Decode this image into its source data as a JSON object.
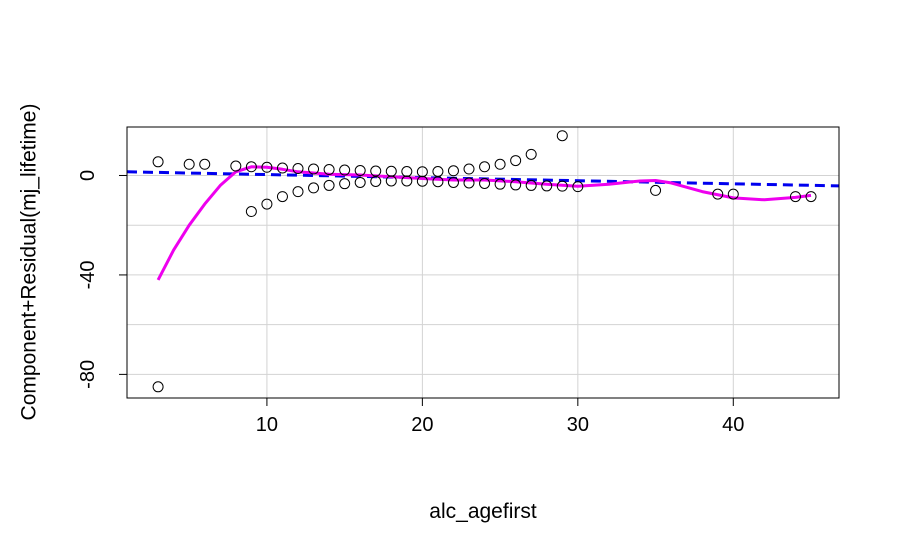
{
  "chart_data": {
    "type": "scatter",
    "title": "",
    "xlabel": "alc_agefirst",
    "ylabel": "Component+Residual(mj_lifetime)",
    "xlim": [
      1,
      46.8
    ],
    "ylim": [
      -89.5,
      19.5
    ],
    "x_ticks": [
      10,
      20,
      30,
      40
    ],
    "y_ticks": [
      -80,
      -40,
      0
    ],
    "grid": true,
    "points": [
      {
        "x": 3,
        "y": 5.5
      },
      {
        "x": 3,
        "y": -85
      },
      {
        "x": 5,
        "y": 4.5
      },
      {
        "x": 6,
        "y": 4.5
      },
      {
        "x": 8,
        "y": 3.8
      },
      {
        "x": 9,
        "y": 3.5
      },
      {
        "x": 9,
        "y": -14.5
      },
      {
        "x": 10,
        "y": 3.3
      },
      {
        "x": 10,
        "y": -11.5
      },
      {
        "x": 11,
        "y": 3.0
      },
      {
        "x": 11,
        "y": -8.5
      },
      {
        "x": 12,
        "y": 2.8
      },
      {
        "x": 12,
        "y": -6.5
      },
      {
        "x": 13,
        "y": 2.6
      },
      {
        "x": 13,
        "y": -5
      },
      {
        "x": 14,
        "y": 2.4
      },
      {
        "x": 14,
        "y": -4
      },
      {
        "x": 15,
        "y": 2.2
      },
      {
        "x": 15,
        "y": -3.3
      },
      {
        "x": 16,
        "y": 2.0
      },
      {
        "x": 16,
        "y": -2.8
      },
      {
        "x": 17,
        "y": 1.8
      },
      {
        "x": 17,
        "y": -2.4
      },
      {
        "x": 18,
        "y": 1.7
      },
      {
        "x": 18,
        "y": -2.2
      },
      {
        "x": 19,
        "y": 1.6
      },
      {
        "x": 19,
        "y": -2.2
      },
      {
        "x": 20,
        "y": 1.5
      },
      {
        "x": 20,
        "y": -2.3
      },
      {
        "x": 21,
        "y": 1.6
      },
      {
        "x": 21,
        "y": -2.5
      },
      {
        "x": 22,
        "y": 1.9
      },
      {
        "x": 22,
        "y": -2.8
      },
      {
        "x": 23,
        "y": 2.6
      },
      {
        "x": 23,
        "y": -3.0
      },
      {
        "x": 24,
        "y": 3.5
      },
      {
        "x": 24,
        "y": -3.2
      },
      {
        "x": 25,
        "y": 4.5
      },
      {
        "x": 25,
        "y": -3.5
      },
      {
        "x": 26,
        "y": 6.0
      },
      {
        "x": 26,
        "y": -3.8
      },
      {
        "x": 27,
        "y": 8.5
      },
      {
        "x": 27,
        "y": -4.0
      },
      {
        "x": 28,
        "y": -4.2
      },
      {
        "x": 29,
        "y": 16
      },
      {
        "x": 29,
        "y": -4.3
      },
      {
        "x": 30,
        "y": -4.5
      },
      {
        "x": 35,
        "y": -6
      },
      {
        "x": 39,
        "y": -7.5
      },
      {
        "x": 40,
        "y": -7.5
      },
      {
        "x": 44,
        "y": -8.5
      },
      {
        "x": 45,
        "y": -8.5
      }
    ],
    "series": [
      {
        "kind": "linear-fit",
        "color": "#0000ee",
        "style": "dashed",
        "x": [
          1,
          46.8
        ],
        "y": [
          1.5,
          -4.2
        ]
      },
      {
        "kind": "smooth-fit",
        "color": "#ee00ee",
        "style": "solid",
        "x": [
          3,
          4,
          5,
          6,
          7,
          8,
          9,
          10,
          11,
          12,
          14,
          16,
          18,
          20,
          22,
          24,
          26,
          28,
          30,
          32,
          34,
          35,
          36,
          38,
          40,
          42,
          44,
          45
        ],
        "y": [
          -42,
          -30,
          -20,
          -11.5,
          -4,
          1.5,
          3.5,
          3.3,
          2.5,
          1.5,
          0.5,
          0.2,
          -0.5,
          -1.2,
          -1.8,
          -1.8,
          -2.5,
          -3.5,
          -4.3,
          -3.5,
          -2.2,
          -2,
          -3,
          -6.5,
          -9,
          -9.8,
          -8.8,
          -8
        ]
      }
    ]
  }
}
